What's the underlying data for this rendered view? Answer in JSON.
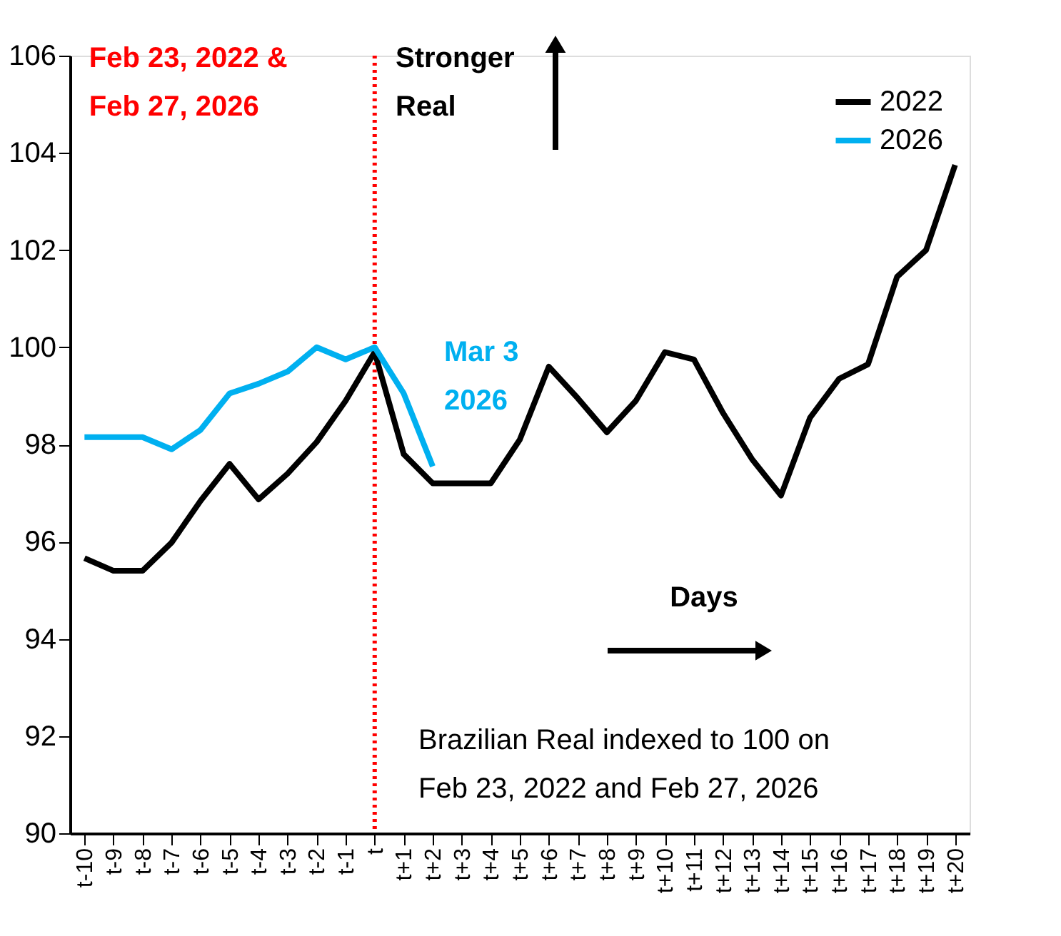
{
  "chart_data": {
    "type": "line",
    "categories": [
      "t-10",
      "t-9",
      "t-8",
      "t-7",
      "t-6",
      "t-5",
      "t-4",
      "t-3",
      "t-2",
      "t-1",
      "t",
      "t+1",
      "t+2",
      "t+3",
      "t+4",
      "t+5",
      "t+6",
      "t+7",
      "t+8",
      "t+9",
      "t+10",
      "t+11",
      "t+12",
      "t+13",
      "t+14",
      "t+15",
      "t+16",
      "t+17",
      "t+18",
      "t+19",
      "t+20"
    ],
    "series": [
      {
        "name": "2022",
        "color": "#000000",
        "values": [
          95.66,
          95.4,
          95.4,
          95.98,
          96.84,
          97.6,
          96.87,
          97.4,
          98.05,
          98.9,
          99.9,
          97.8,
          97.2,
          97.2,
          97.2,
          98.1,
          99.6,
          98.95,
          98.25,
          98.9,
          99.9,
          99.75,
          98.65,
          97.7,
          96.95,
          98.55,
          99.35,
          99.65,
          101.45,
          102.0,
          103.75
        ]
      },
      {
        "name": "2026",
        "color": "#00b0f0",
        "values": [
          98.15,
          98.15,
          98.15,
          97.9,
          98.3,
          99.05,
          99.25,
          99.5,
          100.0,
          99.75,
          100.0,
          99.05,
          97.55,
          null,
          null,
          null,
          null,
          null,
          null,
          null,
          null,
          null,
          null,
          null,
          null,
          null,
          null,
          null,
          null,
          null,
          null
        ]
      }
    ],
    "ylim": [
      90,
      106
    ],
    "yticks": [
      90,
      92,
      94,
      96,
      98,
      100,
      102,
      104,
      106
    ],
    "ref_lines": [
      {
        "axis": "x",
        "value": "t",
        "label": "Feb 23, 2022 &\nFeb 27, 2026",
        "color": "#ff0000",
        "line_style": "dotted"
      }
    ],
    "annotations": [
      "Stronger\nReal",
      "Mar 3\n2026",
      "Days",
      "Brazilian Real indexed to 100 on\nFeb 23, 2022 and Feb 27, 2026"
    ],
    "legend": "top right",
    "grid": false,
    "marker": "none",
    "line_style": "solid"
  }
}
